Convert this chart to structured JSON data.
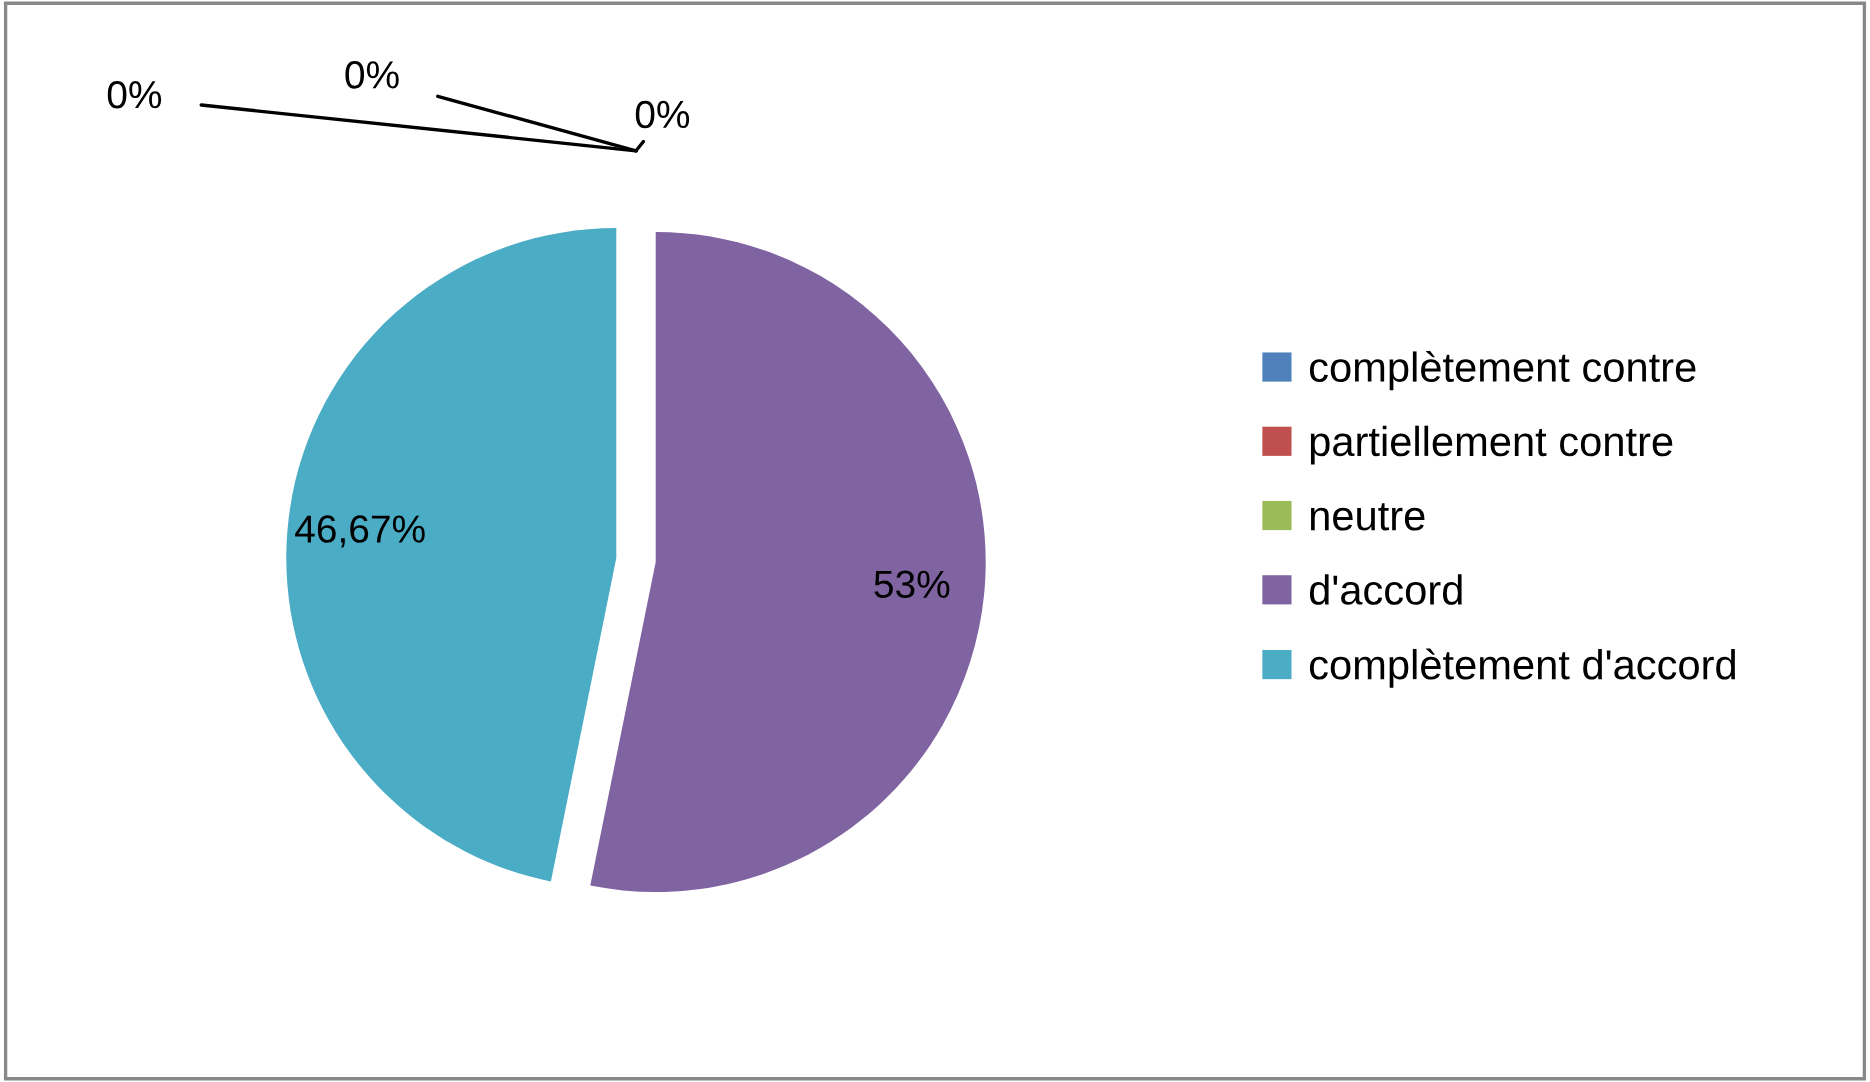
{
  "chart_data": {
    "type": "pie",
    "categories": [
      "complètement contre",
      "partiellement contre",
      "neutre",
      "d'accord",
      "complètement d'accord"
    ],
    "values": [
      0,
      0,
      0,
      53,
      46.67
    ],
    "colors": [
      "#4f81bd",
      "#c0504d",
      "#9bbb59",
      "#8064a2",
      "#4bacc6"
    ],
    "value_labels": [
      "0%",
      "0%",
      "0%",
      "53%",
      "46,67%"
    ],
    "legend": "right"
  }
}
